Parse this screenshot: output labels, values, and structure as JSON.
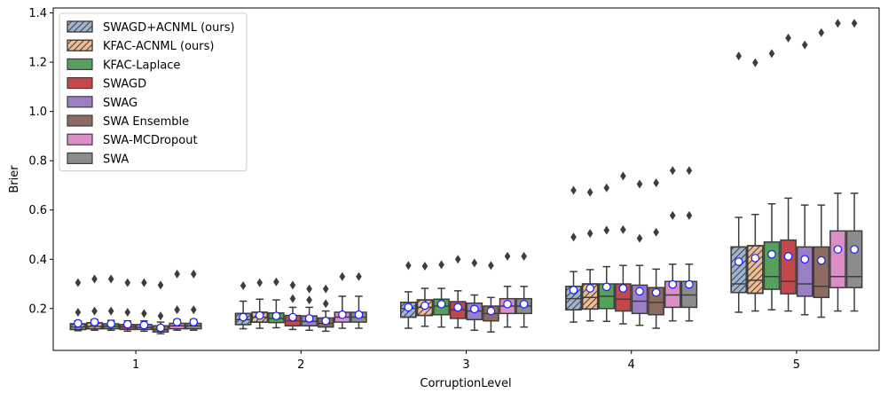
{
  "chart_data": {
    "type": "box",
    "xlabel": "CorruptionLevel",
    "ylabel": "Brier",
    "ylim": [
      0.03,
      1.42
    ],
    "yticks": [
      0.2,
      0.4,
      0.6,
      0.8,
      1.0,
      1.2,
      1.4
    ],
    "ytick_labels": [
      "0.2",
      "0.4",
      "0.6",
      "0.8",
      "1.0",
      "1.2",
      "1.4"
    ],
    "categories": [
      "1",
      "2",
      "3",
      "4",
      "5"
    ],
    "legend_position": "top-left",
    "series": [
      {
        "name": "SWAGD+ACNML (ours)",
        "color": "#9cb6d0",
        "hatch": "diag",
        "boxes": [
          {
            "q1": 0.115,
            "median": 0.125,
            "q3": 0.138,
            "lo": 0.11,
            "hi": 0.15,
            "mean": 0.14,
            "outliers": [
              0.185,
              0.305
            ]
          },
          {
            "q1": 0.135,
            "median": 0.155,
            "q3": 0.18,
            "lo": 0.118,
            "hi": 0.23,
            "mean": 0.165,
            "outliers": [
              0.293
            ]
          },
          {
            "q1": 0.165,
            "median": 0.2,
            "q3": 0.225,
            "lo": 0.12,
            "hi": 0.268,
            "mean": 0.205,
            "outliers": [
              0.375
            ]
          },
          {
            "q1": 0.195,
            "median": 0.24,
            "q3": 0.29,
            "lo": 0.145,
            "hi": 0.35,
            "mean": 0.275,
            "outliers": [
              0.49,
              0.68
            ]
          },
          {
            "q1": 0.265,
            "median": 0.3,
            "q3": 0.45,
            "lo": 0.185,
            "hi": 0.57,
            "mean": 0.39,
            "outliers": [
              1.225
            ]
          }
        ]
      },
      {
        "name": "KFAC-ACNML (ours)",
        "color": "#efbc95",
        "hatch": "diag",
        "boxes": [
          {
            "q1": 0.118,
            "median": 0.128,
            "q3": 0.142,
            "lo": 0.112,
            "hi": 0.155,
            "mean": 0.145,
            "outliers": [
              0.19,
              0.32
            ]
          },
          {
            "q1": 0.145,
            "median": 0.165,
            "q3": 0.185,
            "lo": 0.12,
            "hi": 0.238,
            "mean": 0.172,
            "outliers": [
              0.305
            ]
          },
          {
            "q1": 0.172,
            "median": 0.205,
            "q3": 0.235,
            "lo": 0.128,
            "hi": 0.282,
            "mean": 0.212,
            "outliers": [
              0.372
            ]
          },
          {
            "q1": 0.198,
            "median": 0.245,
            "q3": 0.3,
            "lo": 0.15,
            "hi": 0.358,
            "mean": 0.282,
            "outliers": [
              0.505,
              0.672
            ]
          },
          {
            "q1": 0.262,
            "median": 0.315,
            "q3": 0.455,
            "lo": 0.19,
            "hi": 0.582,
            "mean": 0.405,
            "outliers": [
              1.198
            ]
          }
        ]
      },
      {
        "name": "KFAC-Laplace",
        "color": "#55a05a",
        "hatch": "none",
        "boxes": [
          {
            "q1": 0.118,
            "median": 0.128,
            "q3": 0.138,
            "lo": 0.112,
            "hi": 0.152,
            "mean": 0.138,
            "outliers": [
              0.19,
              0.32
            ]
          },
          {
            "q1": 0.143,
            "median": 0.16,
            "q3": 0.182,
            "lo": 0.122,
            "hi": 0.235,
            "mean": 0.17,
            "outliers": [
              0.308
            ]
          },
          {
            "q1": 0.175,
            "median": 0.21,
            "q3": 0.238,
            "lo": 0.125,
            "hi": 0.282,
            "mean": 0.218,
            "outliers": [
              0.378
            ]
          },
          {
            "q1": 0.2,
            "median": 0.25,
            "q3": 0.3,
            "lo": 0.148,
            "hi": 0.37,
            "mean": 0.288,
            "outliers": [
              0.518,
              0.69
            ]
          },
          {
            "q1": 0.278,
            "median": 0.33,
            "q3": 0.47,
            "lo": 0.195,
            "hi": 0.625,
            "mean": 0.42,
            "outliers": [
              1.235
            ]
          }
        ]
      },
      {
        "name": "SWAGD",
        "color": "#c4474c",
        "hatch": "none",
        "boxes": [
          {
            "q1": 0.115,
            "median": 0.125,
            "q3": 0.135,
            "lo": 0.108,
            "hi": 0.15,
            "mean": 0.136,
            "outliers": [
              0.185,
              0.305
            ]
          },
          {
            "q1": 0.13,
            "median": 0.15,
            "q3": 0.172,
            "lo": 0.115,
            "hi": 0.205,
            "mean": 0.165,
            "outliers": [
              0.24,
              0.295
            ]
          },
          {
            "q1": 0.16,
            "median": 0.195,
            "q3": 0.228,
            "lo": 0.122,
            "hi": 0.272,
            "mean": 0.205,
            "outliers": [
              0.4
            ]
          },
          {
            "q1": 0.19,
            "median": 0.238,
            "q3": 0.3,
            "lo": 0.138,
            "hi": 0.375,
            "mean": 0.282,
            "outliers": [
              0.52,
              0.738
            ]
          },
          {
            "q1": 0.26,
            "median": 0.31,
            "q3": 0.478,
            "lo": 0.19,
            "hi": 0.648,
            "mean": 0.412,
            "outliers": [
              1.298
            ]
          }
        ]
      },
      {
        "name": "SWAG",
        "color": "#9b7fc4",
        "hatch": "none",
        "boxes": [
          {
            "q1": 0.115,
            "median": 0.123,
            "q3": 0.135,
            "lo": 0.108,
            "hi": 0.15,
            "mean": 0.133,
            "outliers": [
              0.18,
              0.305
            ]
          },
          {
            "q1": 0.13,
            "median": 0.148,
            "q3": 0.17,
            "lo": 0.112,
            "hi": 0.205,
            "mean": 0.16,
            "outliers": [
              0.235,
              0.28
            ]
          },
          {
            "q1": 0.155,
            "median": 0.19,
            "q3": 0.222,
            "lo": 0.112,
            "hi": 0.255,
            "mean": 0.198,
            "outliers": [
              0.385
            ]
          },
          {
            "q1": 0.18,
            "median": 0.23,
            "q3": 0.295,
            "lo": 0.132,
            "hi": 0.375,
            "mean": 0.27,
            "outliers": [
              0.485,
              0.705
            ]
          },
          {
            "q1": 0.25,
            "median": 0.3,
            "q3": 0.45,
            "lo": 0.175,
            "hi": 0.62,
            "mean": 0.4,
            "outliers": [
              1.27
            ]
          }
        ]
      },
      {
        "name": "SWA Ensemble",
        "color": "#8d6a62",
        "hatch": "none",
        "boxes": [
          {
            "q1": 0.105,
            "median": 0.115,
            "q3": 0.13,
            "lo": 0.098,
            "hi": 0.145,
            "mean": 0.122,
            "outliers": [
              0.17,
              0.295
            ]
          },
          {
            "q1": 0.125,
            "median": 0.14,
            "q3": 0.162,
            "lo": 0.108,
            "hi": 0.19,
            "mean": 0.15,
            "outliers": [
              0.22,
              0.28
            ]
          },
          {
            "q1": 0.15,
            "median": 0.18,
            "q3": 0.21,
            "lo": 0.105,
            "hi": 0.245,
            "mean": 0.19,
            "outliers": [
              0.375
            ]
          },
          {
            "q1": 0.175,
            "median": 0.225,
            "q3": 0.285,
            "lo": 0.12,
            "hi": 0.36,
            "mean": 0.265,
            "outliers": [
              0.51,
              0.71
            ]
          },
          {
            "q1": 0.245,
            "median": 0.29,
            "q3": 0.45,
            "lo": 0.165,
            "hi": 0.62,
            "mean": 0.395,
            "outliers": [
              1.32
            ]
          }
        ]
      },
      {
        "name": "SWA-MCDropout",
        "color": "#dd8ec6",
        "hatch": "none",
        "boxes": [
          {
            "q1": 0.118,
            "median": 0.13,
            "q3": 0.14,
            "lo": 0.112,
            "hi": 0.155,
            "mean": 0.145,
            "outliers": [
              0.195,
              0.34
            ]
          },
          {
            "q1": 0.145,
            "median": 0.165,
            "q3": 0.185,
            "lo": 0.12,
            "hi": 0.25,
            "mean": 0.175,
            "outliers": [
              0.33
            ]
          },
          {
            "q1": 0.18,
            "median": 0.21,
            "q3": 0.24,
            "lo": 0.125,
            "hi": 0.29,
            "mean": 0.218,
            "outliers": [
              0.412
            ]
          },
          {
            "q1": 0.205,
            "median": 0.255,
            "q3": 0.31,
            "lo": 0.15,
            "hi": 0.38,
            "mean": 0.298,
            "outliers": [
              0.578,
              0.76
            ]
          },
          {
            "q1": 0.285,
            "median": 0.33,
            "q3": 0.515,
            "lo": 0.19,
            "hi": 0.668,
            "mean": 0.44,
            "outliers": [
              1.358
            ]
          }
        ]
      },
      {
        "name": "SWA",
        "color": "#8c8c8c",
        "hatch": "none",
        "boxes": [
          {
            "q1": 0.118,
            "median": 0.13,
            "q3": 0.14,
            "lo": 0.112,
            "hi": 0.155,
            "mean": 0.145,
            "outliers": [
              0.195,
              0.34
            ]
          },
          {
            "q1": 0.145,
            "median": 0.165,
            "q3": 0.185,
            "lo": 0.12,
            "hi": 0.25,
            "mean": 0.175,
            "outliers": [
              0.33
            ]
          },
          {
            "q1": 0.18,
            "median": 0.21,
            "q3": 0.24,
            "lo": 0.125,
            "hi": 0.29,
            "mean": 0.218,
            "outliers": [
              0.412
            ]
          },
          {
            "q1": 0.205,
            "median": 0.255,
            "q3": 0.31,
            "lo": 0.15,
            "hi": 0.38,
            "mean": 0.298,
            "outliers": [
              0.578,
              0.76
            ]
          },
          {
            "q1": 0.285,
            "median": 0.33,
            "q3": 0.515,
            "lo": 0.19,
            "hi": 0.668,
            "mean": 0.44,
            "outliers": [
              1.358
            ]
          }
        ]
      }
    ]
  }
}
